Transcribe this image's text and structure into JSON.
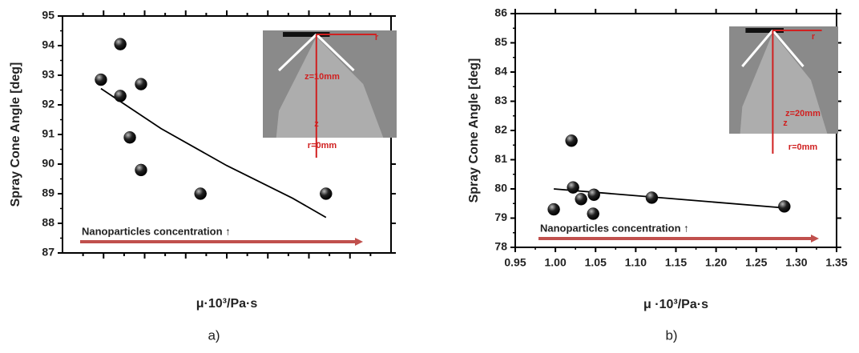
{
  "chart_data": [
    {
      "type": "scatter",
      "y_label": "Spray Cone Angle [deg]",
      "x_label": "μ·10³/Pa·s",
      "caption": "a)",
      "annotation": "Nanoparticles concentration ↑",
      "inset_labels": [
        "r",
        "z=10mm",
        "z",
        "r=0mm"
      ],
      "xlim": [
        0,
        1
      ],
      "ylim": [
        87,
        95
      ],
      "yticks": [
        87,
        88,
        89,
        90,
        91,
        92,
        93,
        94,
        95
      ],
      "x": [
        0.117,
        0.176,
        0.176,
        0.239,
        0.205,
        0.239,
        0.42,
        0.802
      ],
      "values": [
        92.85,
        94.05,
        92.3,
        92.7,
        90.9,
        89.8,
        89.0,
        89.0
      ],
      "fit_x": [
        0.117,
        0.3,
        0.5,
        0.7,
        0.802
      ],
      "fit_values": [
        92.55,
        91.2,
        89.95,
        88.85,
        88.2
      ],
      "color": "#111111",
      "arrow_color": "#c0504d"
    },
    {
      "type": "scatter",
      "y_label": "Spray Cone Angle [deg]",
      "x_label": "μ ·10³/Pa·s",
      "caption": "b)",
      "annotation": "Nanoparticles concentration ↑",
      "inset_labels": [
        "r",
        "z=20mm",
        "z",
        "r=0mm"
      ],
      "xlim": [
        0.95,
        1.35
      ],
      "ylim": [
        78,
        86
      ],
      "yticks": [
        78,
        79,
        80,
        81,
        82,
        83,
        84,
        85,
        86
      ],
      "xticks": [
        {
          "value": 0.95,
          "label": "0.95"
        },
        {
          "value": 1.0,
          "label": "1.00"
        },
        {
          "value": 1.05,
          "label": "1.05"
        },
        {
          "value": 1.1,
          "label": "1.10"
        },
        {
          "value": 1.15,
          "label": "1.15"
        },
        {
          "value": 1.2,
          "label": "1.20"
        },
        {
          "value": 1.25,
          "label": "1.25"
        },
        {
          "value": 1.3,
          "label": "1.30"
        },
        {
          "value": 1.35,
          "label": "1.35"
        }
      ],
      "x": [
        0.998,
        1.02,
        1.022,
        1.032,
        1.048,
        1.047,
        1.12,
        1.285
      ],
      "values": [
        79.3,
        81.65,
        80.05,
        79.65,
        79.8,
        79.15,
        79.7,
        79.4
      ],
      "fit_x": [
        0.998,
        1.285
      ],
      "fit_values": [
        80.0,
        79.35
      ],
      "color": "#111111",
      "arrow_color": "#c0504d"
    }
  ]
}
